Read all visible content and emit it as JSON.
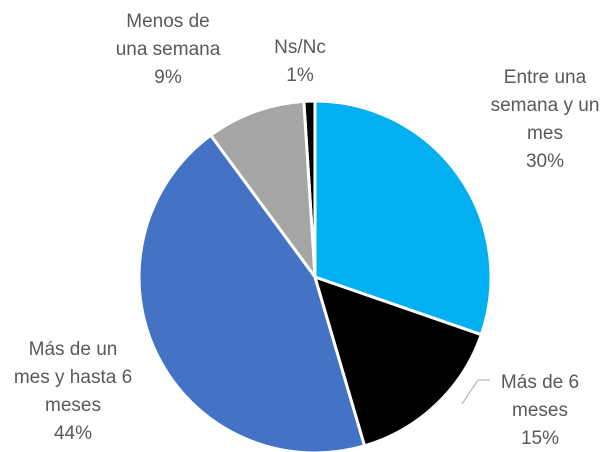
{
  "chart_data": {
    "type": "pie",
    "categories": [
      "Entre una semana y un mes",
      "Más de 6 meses",
      "Más de un mes y hasta 6 meses",
      "Menos de una semana",
      "Ns/Nc"
    ],
    "values": [
      30,
      15,
      44,
      9,
      1
    ],
    "value_labels": [
      "30%",
      "15%",
      "44%",
      "9%",
      "1%"
    ],
    "colors": [
      "#00b0f0",
      "#000000",
      "#4472c4",
      "#a5a5a5",
      "#000000"
    ]
  }
}
